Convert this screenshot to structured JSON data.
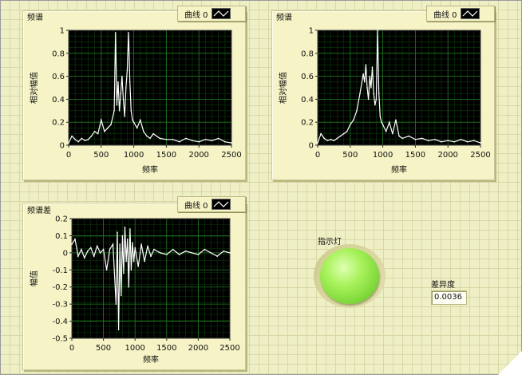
{
  "charts": [
    {
      "panel_title": "频谱",
      "legend_label": "曲线 0",
      "legend_icon": "line-plot-icon",
      "ylabel": "相对幅值",
      "xlabel": "频率",
      "xticks": [
        "0",
        "500",
        "1000",
        "1500",
        "2000",
        "2500"
      ],
      "yticks": [
        "0",
        "0.2",
        "0.4",
        "0.6",
        "0.8",
        "1"
      ]
    },
    {
      "panel_title": "频谱",
      "legend_label": "曲线 0",
      "legend_icon": "line-plot-icon",
      "ylabel": "相对幅值",
      "xlabel": "频率",
      "xticks": [
        "0",
        "500",
        "1000",
        "1500",
        "2000",
        "2500"
      ],
      "yticks": [
        "0",
        "0.2",
        "0.4",
        "0.6",
        "0.8",
        "1"
      ]
    },
    {
      "panel_title": "频谱差",
      "legend_label": "曲线 0",
      "legend_icon": "line-plot-icon",
      "ylabel": "幅值",
      "xlabel": "频率",
      "xticks": [
        "0",
        "500",
        "1000",
        "1500",
        "2000",
        "2500"
      ],
      "yticks": [
        "-0.5",
        "-0.4",
        "-0.3",
        "-0.2",
        "-0.1",
        "0",
        "0.1",
        "0.2"
      ]
    }
  ],
  "indicator": {
    "label": "指示灯",
    "state": "on",
    "color": "#8fe448"
  },
  "difference": {
    "label": "差异度",
    "value": "0.0036"
  },
  "chart_data": [
    {
      "type": "line",
      "xlabel": "频率",
      "ylabel": "相对幅值",
      "xlim": [
        0,
        2500
      ],
      "ylim": [
        0,
        1
      ],
      "grid": true,
      "legend": "top-right",
      "series": [
        {
          "name": "曲线 0",
          "color": "#ffffff",
          "x": [
            0,
            50,
            100,
            150,
            200,
            250,
            300,
            350,
            400,
            450,
            500,
            550,
            600,
            650,
            700,
            720,
            740,
            760,
            780,
            800,
            820,
            840,
            860,
            880,
            900,
            920,
            940,
            960,
            980,
            1000,
            1050,
            1100,
            1150,
            1200,
            1250,
            1300,
            1400,
            1500,
            1600,
            1700,
            1800,
            1900,
            2000,
            2100,
            2200,
            2300,
            2400,
            2500
          ],
          "y": [
            0.02,
            0.08,
            0.05,
            0.03,
            0.06,
            0.04,
            0.05,
            0.08,
            0.12,
            0.1,
            0.22,
            0.12,
            0.15,
            0.18,
            0.3,
            0.98,
            0.35,
            0.55,
            0.3,
            0.45,
            0.6,
            0.4,
            0.25,
            0.5,
            0.65,
            0.98,
            0.55,
            0.3,
            0.22,
            0.2,
            0.15,
            0.22,
            0.12,
            0.08,
            0.06,
            0.1,
            0.06,
            0.05,
            0.05,
            0.03,
            0.06,
            0.04,
            0.03,
            0.05,
            0.04,
            0.06,
            0.03,
            0.02
          ]
        }
      ]
    },
    {
      "type": "line",
      "xlabel": "频率",
      "ylabel": "相对幅值",
      "xlim": [
        0,
        2500
      ],
      "ylim": [
        0,
        1
      ],
      "grid": true,
      "legend": "top-right",
      "series": [
        {
          "name": "曲线 0",
          "color": "#ffffff",
          "x": [
            0,
            50,
            100,
            150,
            200,
            250,
            300,
            350,
            400,
            450,
            500,
            550,
            600,
            650,
            700,
            720,
            740,
            760,
            780,
            800,
            820,
            840,
            860,
            880,
            900,
            920,
            940,
            960,
            980,
            1000,
            1050,
            1100,
            1150,
            1200,
            1250,
            1300,
            1400,
            1500,
            1600,
            1700,
            1800,
            1900,
            2000,
            2100,
            2200,
            2300,
            2400,
            2500
          ],
          "y": [
            0.02,
            0.1,
            0.06,
            0.04,
            0.05,
            0.04,
            0.06,
            0.08,
            0.1,
            0.12,
            0.18,
            0.22,
            0.3,
            0.45,
            0.62,
            0.55,
            0.7,
            0.5,
            0.4,
            0.6,
            0.5,
            0.68,
            0.45,
            0.35,
            0.4,
            1.0,
            0.45,
            0.25,
            0.2,
            0.18,
            0.12,
            0.2,
            0.1,
            0.22,
            0.08,
            0.06,
            0.08,
            0.05,
            0.06,
            0.04,
            0.05,
            0.03,
            0.04,
            0.03,
            0.05,
            0.03,
            0.04,
            0.02
          ]
        }
      ]
    },
    {
      "type": "line",
      "xlabel": "频率",
      "ylabel": "幅值",
      "xlim": [
        0,
        2500
      ],
      "ylim": [
        -0.5,
        0.2
      ],
      "grid": true,
      "legend": "top-right",
      "series": [
        {
          "name": "曲线 0",
          "color": "#ffffff",
          "x": [
            0,
            50,
            100,
            150,
            200,
            250,
            300,
            350,
            400,
            450,
            500,
            550,
            600,
            650,
            700,
            720,
            740,
            760,
            780,
            800,
            820,
            840,
            860,
            880,
            900,
            920,
            940,
            960,
            980,
            1000,
            1050,
            1100,
            1150,
            1200,
            1250,
            1300,
            1400,
            1500,
            1600,
            1700,
            1800,
            1900,
            2000,
            2100,
            2200,
            2300,
            2400,
            2500
          ],
          "y": [
            0.05,
            0.08,
            -0.02,
            0.02,
            -0.03,
            0.01,
            0.03,
            -0.02,
            0.04,
            0.0,
            0.02,
            -0.1,
            0.02,
            0.05,
            -0.3,
            0.12,
            -0.45,
            0.05,
            -0.25,
            0.1,
            -0.12,
            0.15,
            -0.05,
            0.08,
            -0.2,
            0.14,
            -0.1,
            0.06,
            -0.05,
            0.03,
            -0.08,
            0.05,
            -0.05,
            0.04,
            -0.02,
            0.02,
            0.0,
            -0.01,
            0.02,
            -0.01,
            0.01,
            0.0,
            -0.01,
            0.02,
            0.0,
            -0.02,
            0.01,
            0.0
          ]
        }
      ]
    }
  ]
}
